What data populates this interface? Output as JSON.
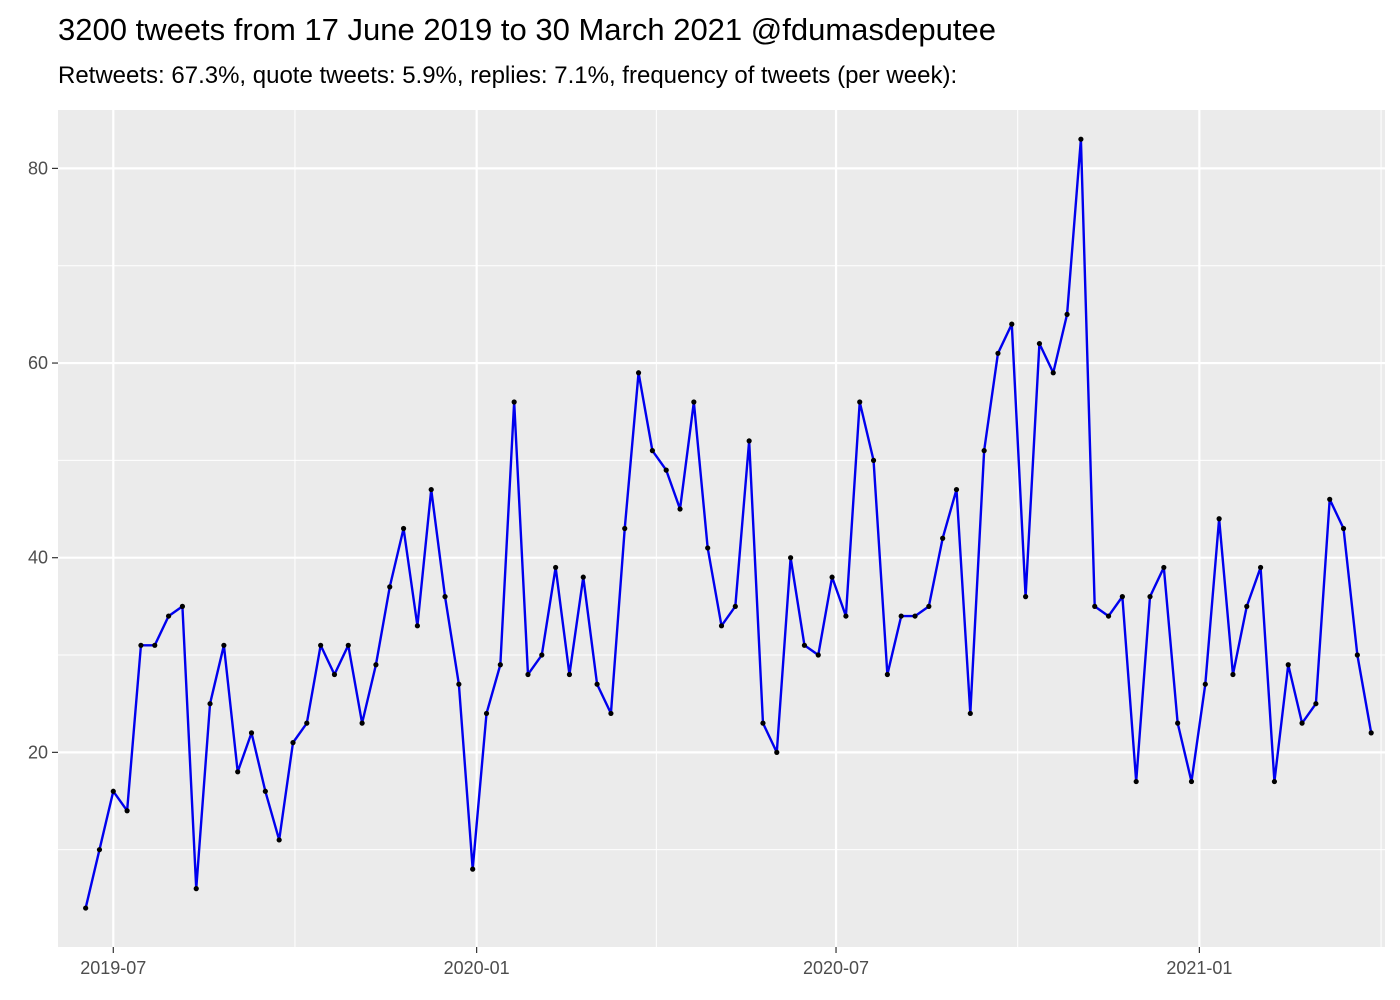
{
  "chart_data": {
    "type": "line",
    "title": "3200 tweets from 17 June 2019 to 30 March 2021 @fdumasdeputee",
    "subtitle": "Retweets: 67.3%, quote tweets: 5.9%, replies: 7.1%, frequency of tweets (per week):",
    "xlabel": "",
    "ylabel": "",
    "x_start": "2019-06-17",
    "x_step_days": 7,
    "xlim": [
      "2019-06-03",
      "2021-04-05"
    ],
    "ylim": [
      0,
      86
    ],
    "x_ticks": [
      {
        "date": "2019-07-01",
        "label": "2019-07"
      },
      {
        "date": "2020-01-01",
        "label": "2020-01"
      },
      {
        "date": "2020-07-01",
        "label": "2020-07"
      },
      {
        "date": "2021-01-01",
        "label": "2021-01"
      }
    ],
    "y_ticks": [
      20,
      40,
      60,
      80
    ],
    "grid": true,
    "legend": "none",
    "colors": {
      "line": "#0000ee",
      "point": "#000000",
      "panel": "#ebebeb",
      "grid": "#ffffff"
    },
    "series": [
      {
        "values": [
          4,
          10,
          16,
          14,
          31,
          31,
          34,
          35,
          6,
          25,
          31,
          18,
          22,
          16,
          11,
          21,
          23,
          31,
          28,
          31,
          23,
          29,
          37,
          43,
          33,
          47,
          36,
          27,
          8,
          24,
          29,
          56,
          28,
          30,
          39,
          28,
          38,
          27,
          24,
          43,
          59,
          51,
          49,
          45,
          56,
          41,
          33,
          35,
          52,
          23,
          20,
          40,
          31,
          30,
          38,
          34,
          56,
          50,
          28,
          34,
          34,
          35,
          42,
          47,
          24,
          51,
          61,
          64,
          36,
          62,
          59,
          65,
          83,
          35,
          34,
          36,
          17,
          36,
          39,
          23,
          17,
          27,
          44,
          28,
          35,
          39,
          17,
          29,
          23,
          25,
          46,
          43,
          30,
          22
        ]
      }
    ]
  }
}
